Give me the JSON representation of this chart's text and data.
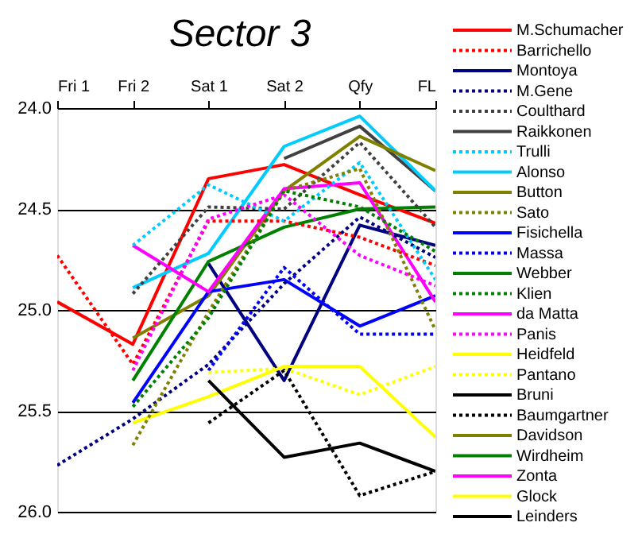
{
  "chart_data": {
    "type": "line",
    "title": "Sector 3",
    "categories": [
      "Fri 1",
      "Fri 2",
      "Sat 1",
      "Sat 2",
      "Qfy",
      "FL"
    ],
    "ylim": [
      26.0,
      24.0
    ],
    "yticks": [
      {
        "value": 24.0,
        "label": "24.0"
      },
      {
        "value": 24.5,
        "label": "24.5"
      },
      {
        "value": 25.0,
        "label": "25.0"
      },
      {
        "value": 25.5,
        "label": "25.5"
      },
      {
        "value": 26.0,
        "label": "26.0"
      }
    ],
    "grid": "y",
    "legend": "right",
    "marker": "none",
    "series": [
      {
        "name": "M.Schumacher",
        "color": "#ff0000",
        "line_style": "solid",
        "values": [
          24.96,
          25.17,
          24.35,
          24.28,
          24.43,
          24.57
        ]
      },
      {
        "name": "Barrichello",
        "color": "#ff0000",
        "line_style": "dotted",
        "values": [
          24.73,
          25.27,
          24.56,
          24.56,
          24.64,
          24.78
        ]
      },
      {
        "name": "Montoya",
        "color": "#000080",
        "line_style": "solid",
        "values": [
          null,
          null,
          24.77,
          25.35,
          24.58,
          24.68
        ]
      },
      {
        "name": "M.Gene",
        "color": "#000080",
        "line_style": "dotted",
        "values": [
          25.77,
          25.54,
          25.27,
          24.87,
          24.54,
          24.74
        ]
      },
      {
        "name": "Coulthard",
        "color": "#404040",
        "line_style": "dotted",
        "values": [
          null,
          24.92,
          24.49,
          24.5,
          24.17,
          24.59
        ]
      },
      {
        "name": "Raikkonen",
        "color": "#404040",
        "line_style": "solid",
        "values": [
          null,
          null,
          null,
          24.25,
          24.09,
          24.41
        ]
      },
      {
        "name": "Trulli",
        "color": "#00ccff",
        "line_style": "dotted",
        "values": [
          null,
          24.68,
          24.38,
          24.56,
          24.27,
          24.85
        ]
      },
      {
        "name": "Alonso",
        "color": "#00ccff",
        "line_style": "solid",
        "values": [
          null,
          24.89,
          24.72,
          24.19,
          24.04,
          24.41
        ]
      },
      {
        "name": "Button",
        "color": "#808000",
        "line_style": "solid",
        "values": [
          null,
          25.14,
          24.93,
          24.41,
          24.14,
          24.31
        ]
      },
      {
        "name": "Sato",
        "color": "#808000",
        "line_style": "dotted",
        "values": [
          null,
          25.67,
          25.01,
          24.41,
          24.3,
          25.1
        ]
      },
      {
        "name": "Fisichella",
        "color": "#0000ff",
        "line_style": "solid",
        "values": [
          null,
          25.46,
          24.91,
          24.85,
          25.08,
          24.93
        ]
      },
      {
        "name": "Massa",
        "color": "#0000ff",
        "line_style": "dotted",
        "values": [
          null,
          null,
          25.3,
          24.79,
          25.12,
          25.12
        ]
      },
      {
        "name": "Webber",
        "color": "#008000",
        "line_style": "solid",
        "values": [
          null,
          25.35,
          24.76,
          24.59,
          24.5,
          24.49
        ]
      },
      {
        "name": "Klien",
        "color": "#008000",
        "line_style": "dotted",
        "values": [
          null,
          25.48,
          25.04,
          24.41,
          24.49,
          24.71
        ]
      },
      {
        "name": "da Matta",
        "color": "#ff00ff",
        "line_style": "solid",
        "values": [
          null,
          24.68,
          24.91,
          24.4,
          24.37,
          24.96
        ]
      },
      {
        "name": "Panis",
        "color": "#ff00ff",
        "line_style": "dotted",
        "values": [
          null,
          25.3,
          24.55,
          24.43,
          24.73,
          24.88
        ]
      },
      {
        "name": "Heidfeld",
        "color": "#ffff00",
        "line_style": "solid",
        "values": [
          null,
          25.56,
          25.43,
          25.28,
          25.28,
          25.63
        ]
      },
      {
        "name": "Pantano",
        "color": "#ffff00",
        "line_style": "dotted",
        "values": [
          null,
          null,
          25.31,
          25.29,
          25.42,
          25.28
        ]
      },
      {
        "name": "Bruni",
        "color": "#000000",
        "line_style": "solid",
        "values": [
          null,
          null,
          25.35,
          25.73,
          25.66,
          25.8
        ]
      },
      {
        "name": "Baumgartner",
        "color": "#000000",
        "line_style": "dotted",
        "values": [
          null,
          null,
          25.56,
          25.3,
          25.92,
          25.8
        ]
      },
      {
        "name": "Davidson",
        "color": "#808000",
        "line_style": "solid",
        "values": [
          null,
          null,
          null,
          null,
          null,
          null
        ]
      },
      {
        "name": "Wirdheim",
        "color": "#008000",
        "line_style": "solid",
        "values": [
          null,
          null,
          null,
          null,
          null,
          null
        ]
      },
      {
        "name": "Zonta",
        "color": "#ff00ff",
        "line_style": "solid",
        "values": [
          null,
          null,
          null,
          null,
          null,
          null
        ]
      },
      {
        "name": "Glock",
        "color": "#ffff00",
        "line_style": "solid",
        "values": [
          null,
          null,
          null,
          null,
          null,
          null
        ]
      },
      {
        "name": "Leinders",
        "color": "#000000",
        "line_style": "solid",
        "values": [
          null,
          null,
          null,
          null,
          null,
          null
        ]
      }
    ]
  }
}
